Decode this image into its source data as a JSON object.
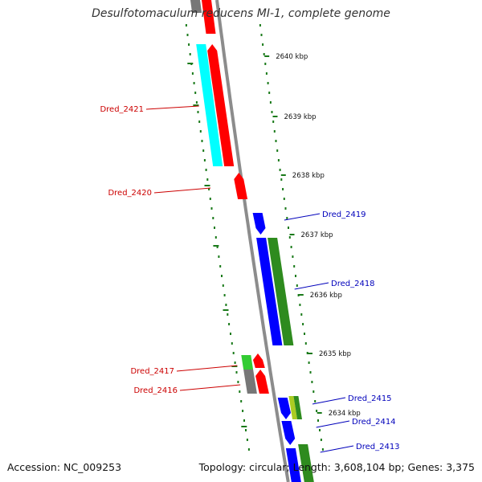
{
  "title": "Desulfotomaculum reducens MI-1, complete genome",
  "footer": {
    "accession": "Accession: NC_009253",
    "topology": "Topology: circular; Length: 3,608,104 bp; Genes: 3,375"
  },
  "colors": {
    "backbone": "#8c8c8c",
    "left_strand_label": "#cc0000",
    "right_strand_label": "#0000bb",
    "tick": "#1a7a1a",
    "red_gene": "#ff0000",
    "blue_gene": "#0000ff",
    "green_gene": "#2e8b1e",
    "cyan_gene": "#00ffff",
    "gray_gene": "#777777",
    "lightgreen_gene": "#33cc33",
    "yellowgreen_gene": "#aacc22"
  },
  "ticks": [
    {
      "label": "2640 kbp"
    },
    {
      "label": "2639 kbp"
    },
    {
      "label": "2638 kbp"
    },
    {
      "label": "2637 kbp"
    },
    {
      "label": "2636 kbp"
    },
    {
      "label": "2635 kbp"
    },
    {
      "label": "2634 kbp"
    }
  ],
  "gene_labels_left": [
    {
      "label": "Dred_2421"
    },
    {
      "label": "Dred_2420"
    },
    {
      "label": "Dred_2417"
    },
    {
      "label": "Dred_2416"
    }
  ],
  "gene_labels_right": [
    {
      "label": "Dred_2419"
    },
    {
      "label": "Dred_2418"
    },
    {
      "label": "Dred_2415"
    },
    {
      "label": "Dred_2414"
    },
    {
      "label": "Dred_2413"
    }
  ]
}
